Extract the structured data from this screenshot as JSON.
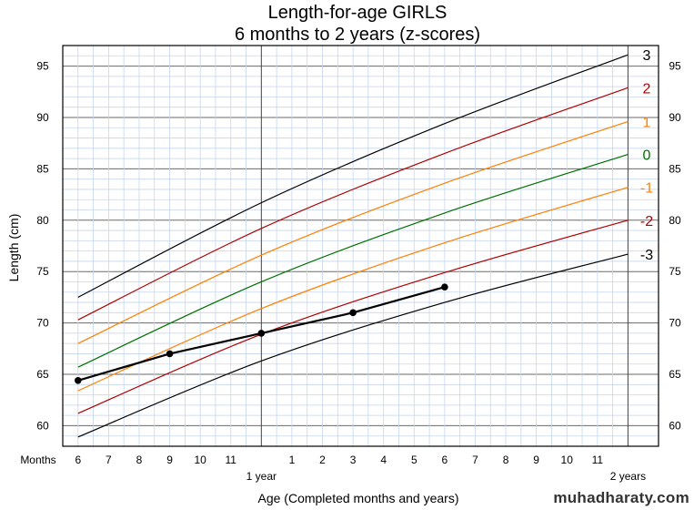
{
  "chart_data": {
    "type": "line",
    "title": "Length-for-age  GIRLS",
    "subtitle": "6 months to 2 years (z-scores)",
    "xlabel": "Age (Completed months and years)",
    "ylabel": "Length (cm)",
    "months_label": "Months",
    "xlim": [
      5.5,
      25
    ],
    "ylim": [
      58,
      97
    ],
    "y_ticks": [
      60,
      65,
      70,
      75,
      80,
      85,
      90,
      95
    ],
    "x_ticks": [
      {
        "x": 6,
        "label": "6"
      },
      {
        "x": 7,
        "label": "7"
      },
      {
        "x": 8,
        "label": "8"
      },
      {
        "x": 9,
        "label": "9"
      },
      {
        "x": 10,
        "label": "10"
      },
      {
        "x": 11,
        "label": "11"
      },
      {
        "x": 13,
        "label": "1"
      },
      {
        "x": 14,
        "label": "2"
      },
      {
        "x": 15,
        "label": "3"
      },
      {
        "x": 16,
        "label": "4"
      },
      {
        "x": 17,
        "label": "5"
      },
      {
        "x": 18,
        "label": "6"
      },
      {
        "x": 19,
        "label": "7"
      },
      {
        "x": 20,
        "label": "8"
      },
      {
        "x": 21,
        "label": "9"
      },
      {
        "x": 22,
        "label": "10"
      },
      {
        "x": 23,
        "label": "11"
      }
    ],
    "year_labels": [
      {
        "x": 12,
        "label": "1 year"
      },
      {
        "x": 24,
        "label": "2 years"
      }
    ],
    "x_major": [
      12,
      24
    ],
    "series": [
      {
        "name": "3",
        "color": "#000000",
        "x": [
          6,
          12,
          18,
          24
        ],
        "values": [
          72.5,
          81.7,
          89.4,
          96.1
        ]
      },
      {
        "name": "2",
        "color": "#b00000",
        "x": [
          6,
          12,
          18,
          24
        ],
        "values": [
          70.3,
          79.2,
          86.5,
          92.9
        ]
      },
      {
        "name": "1",
        "color": "#ff7f00",
        "x": [
          6,
          12,
          18,
          24
        ],
        "values": [
          68.0,
          76.6,
          83.6,
          89.6
        ]
      },
      {
        "name": "0",
        "color": "#007000",
        "x": [
          6,
          12,
          18,
          24
        ],
        "values": [
          65.7,
          74.0,
          80.7,
          86.4
        ]
      },
      {
        "name": "-1",
        "color": "#ff7f00",
        "x": [
          6,
          12,
          18,
          24
        ],
        "values": [
          63.4,
          71.4,
          77.8,
          83.2
        ]
      },
      {
        "name": "-2",
        "color": "#b00000",
        "x": [
          6,
          12,
          18,
          24
        ],
        "values": [
          61.2,
          68.9,
          74.9,
          80.0
        ]
      },
      {
        "name": "-3",
        "color": "#000000",
        "x": [
          6,
          12,
          18,
          24
        ],
        "values": [
          58.9,
          66.3,
          72.0,
          76.7
        ]
      }
    ],
    "measurements": {
      "name": "child",
      "color": "#000000",
      "x": [
        6,
        9,
        12,
        15,
        18
      ],
      "values": [
        64.4,
        67.0,
        69.0,
        71.0,
        73.5
      ]
    }
  },
  "watermark": "muhadharaty.com"
}
